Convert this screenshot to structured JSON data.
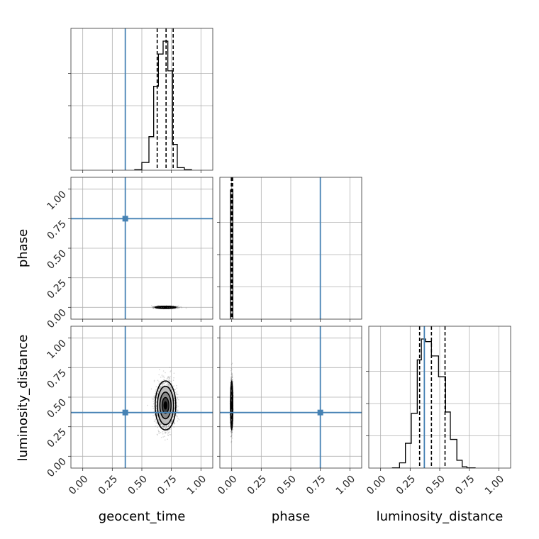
{
  "chart_data": {
    "type": "corner",
    "parameters": [
      "geocent_time",
      "phase",
      "luminosity_distance"
    ],
    "axis_range": [
      -0.1,
      1.1
    ],
    "tick_values": [
      0,
      0.25,
      0.5,
      0.75,
      1
    ],
    "tick_labels": [
      "0.00",
      "0.25",
      "0.50",
      "0.75",
      "1.00"
    ],
    "grid": true,
    "colors": {
      "truth": "#4682b4",
      "hist": "#000000",
      "points": "#777777"
    },
    "truths": {
      "geocent_time": 0.36,
      "phase": 0.75,
      "luminosity_distance": 0.37
    },
    "histograms": {
      "geocent_time": {
        "bins": [
          0.44,
          0.5,
          0.56,
          0.6,
          0.64,
          0.68,
          0.72,
          0.76,
          0.8,
          0.86,
          0.92
        ],
        "counts": [
          0.005,
          0.06,
          0.26,
          0.65,
          0.9,
          1.0,
          0.77,
          0.2,
          0.02,
          0.005
        ],
        "quantiles": [
          0.63,
          0.705,
          0.765
        ]
      },
      "phase": {
        "bins": [
          -0.01,
          0.01
        ],
        "counts": [
          1.0
        ],
        "quantiles": [
          -0.003,
          0.002,
          0.008
        ]
      },
      "luminosity_distance": {
        "bins": [
          0.1,
          0.16,
          0.21,
          0.26,
          0.31,
          0.345,
          0.38,
          0.43,
          0.49,
          0.55,
          0.59,
          0.645,
          0.69,
          0.73,
          0.8
        ],
        "counts": [
          0.002,
          0.04,
          0.19,
          0.42,
          0.83,
          0.99,
          0.97,
          0.86,
          0.7,
          0.43,
          0.22,
          0.06,
          0.01,
          0.002
        ],
        "quantiles": [
          0.33,
          0.43,
          0.545
        ]
      }
    },
    "scatter_2d": {
      "geocent_time|phase": {
        "center": [
          0.7,
          0.0
        ],
        "sd": [
          0.038,
          0.004
        ]
      },
      "geocent_time|luminosity_distance": {
        "center": [
          0.7,
          0.43
        ],
        "sd": [
          0.038,
          0.09
        ]
      },
      "phase|luminosity_distance": {
        "center": [
          0.0,
          0.43
        ],
        "sd": [
          0.004,
          0.09
        ]
      }
    }
  }
}
